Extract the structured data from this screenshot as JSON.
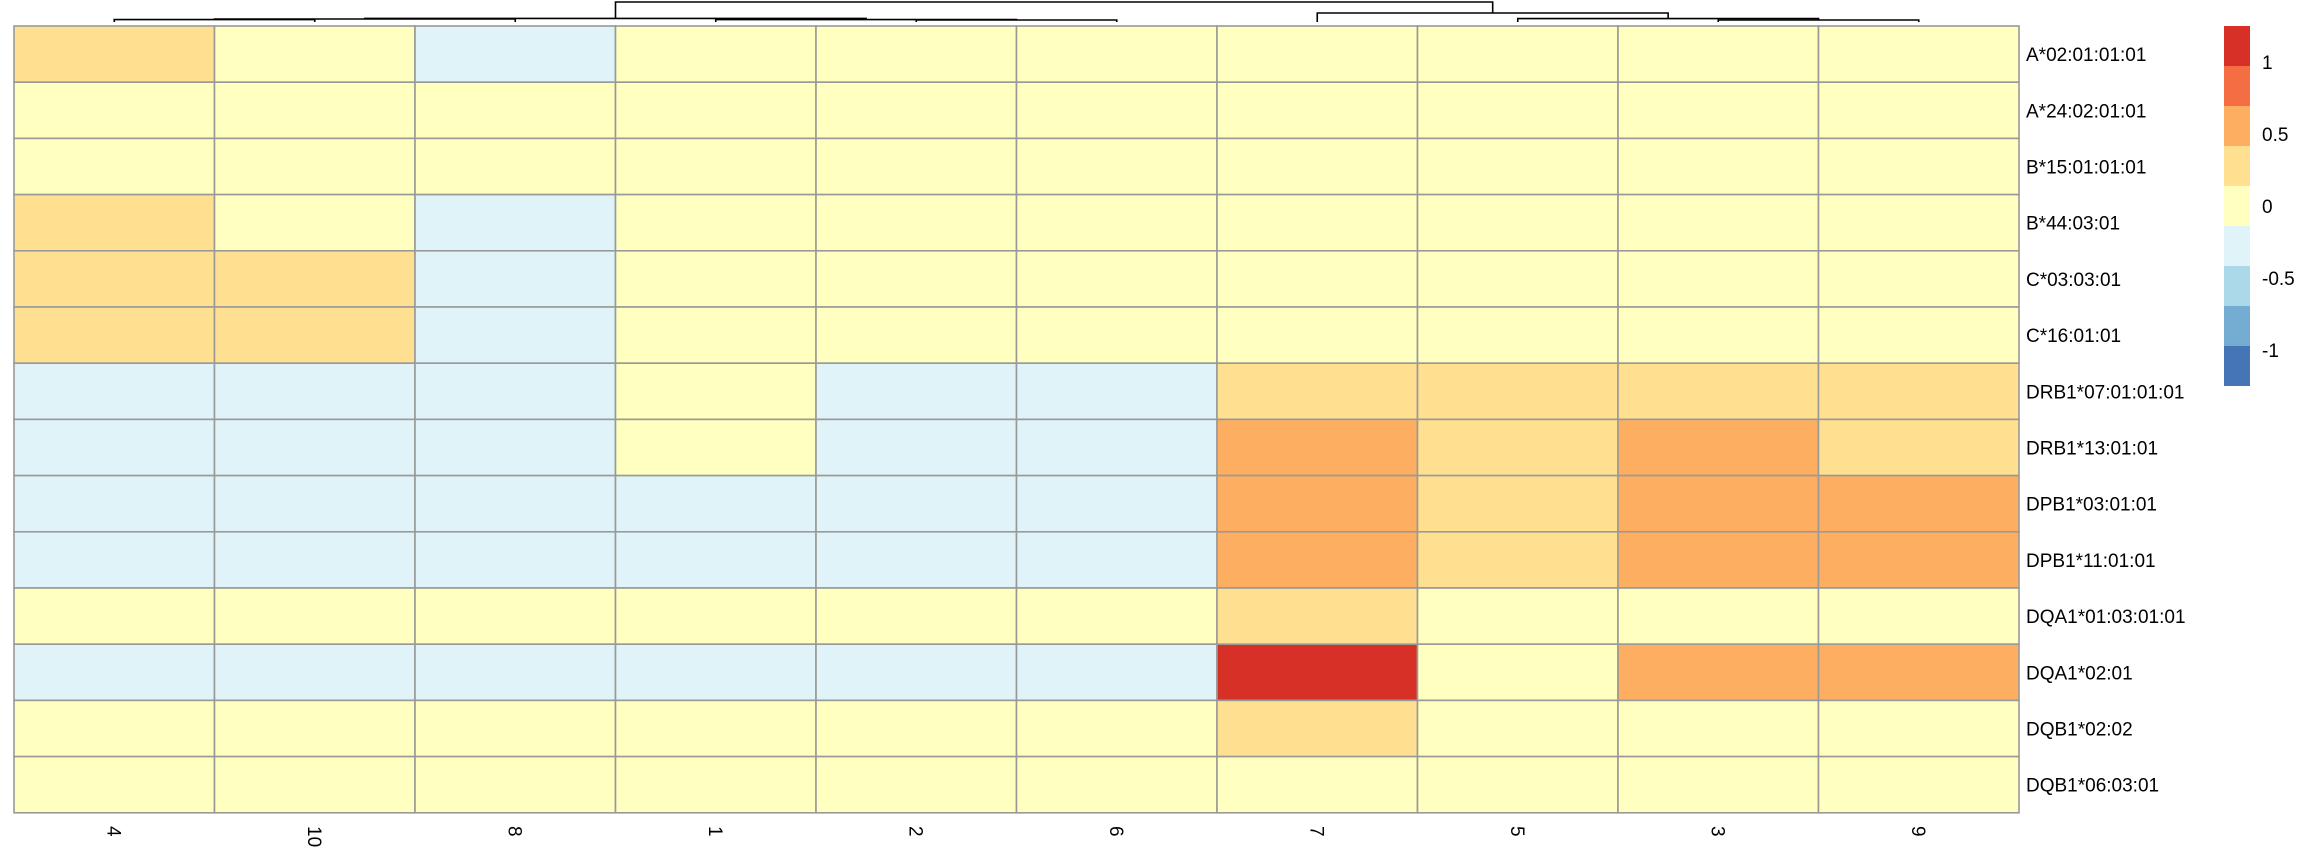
{
  "chart_data": {
    "type": "heatmap",
    "title": "",
    "xlabel": "",
    "ylabel": "",
    "columns": [
      "4",
      "10",
      "8",
      "1",
      "2",
      "6",
      "7",
      "5",
      "3",
      "9"
    ],
    "rows": [
      "A*02:01:01:01",
      "A*24:02:01:01",
      "B*15:01:01:01",
      "B*44:03:01",
      "C*03:03:01",
      "C*16:01:01",
      "DRB1*07:01:01:01",
      "DRB1*13:01:01",
      "DPB1*03:01:01",
      "DPB1*11:01:01",
      "DQA1*01:03:01:01",
      "DQA1*02:01",
      "DQB1*02:02",
      "DQB1*06:03:01"
    ],
    "values": [
      [
        0.25,
        0,
        -0.25,
        0,
        0,
        0,
        0,
        0,
        0,
        0
      ],
      [
        0,
        0,
        0,
        0,
        0,
        0,
        0,
        0,
        0,
        0
      ],
      [
        0,
        0,
        0,
        0,
        0,
        0,
        0,
        0,
        0,
        0
      ],
      [
        0.25,
        0,
        -0.25,
        0,
        0,
        0,
        0,
        0,
        0,
        0
      ],
      [
        0.25,
        0.25,
        -0.25,
        0,
        0,
        0,
        0,
        0,
        0,
        0
      ],
      [
        0.25,
        0.25,
        -0.25,
        0,
        0,
        0,
        0,
        0,
        0,
        0
      ],
      [
        -0.25,
        -0.25,
        -0.25,
        0,
        -0.25,
        -0.25,
        0.25,
        0.25,
        0.25,
        0.25
      ],
      [
        -0.25,
        -0.25,
        -0.25,
        0,
        -0.25,
        -0.25,
        0.5,
        0.25,
        0.5,
        0.25
      ],
      [
        -0.25,
        -0.25,
        -0.25,
        -0.25,
        -0.25,
        -0.25,
        0.5,
        0.25,
        0.5,
        0.5
      ],
      [
        -0.25,
        -0.25,
        -0.25,
        -0.25,
        -0.25,
        -0.25,
        0.5,
        0.25,
        0.5,
        0.5
      ],
      [
        0,
        0,
        0,
        0,
        0,
        0,
        0.25,
        0,
        0,
        0
      ],
      [
        -0.25,
        -0.5,
        -0.25,
        -0.25,
        -0.5,
        -0.5,
        1.25,
        0,
        0.5,
        0.5
      ],
      [
        0,
        0,
        0,
        0,
        0,
        0,
        0.25,
        0,
        0,
        0
      ],
      [
        0,
        0,
        0,
        0,
        0,
        0,
        0,
        0,
        0,
        0
      ]
    ],
    "color_scale": {
      "range": [
        -1.25,
        1.25
      ],
      "bins": [
        {
          "min": -1.25,
          "max": -1.0,
          "color": "#4575B4"
        },
        {
          "min": -1.0,
          "max": -0.75,
          "color": "#74ADD1"
        },
        {
          "min": -0.75,
          "max": -0.5,
          "color": "#ABD9E9"
        },
        {
          "min": -0.5,
          "max": -0.125,
          "color": "#E0F3F8"
        },
        {
          "min": -0.125,
          "max": 0.125,
          "color": "#FFFFBF"
        },
        {
          "min": 0.125,
          "max": 0.375,
          "color": "#FEE090"
        },
        {
          "min": 0.375,
          "max": 0.75,
          "color": "#FDAE61"
        },
        {
          "min": 0.75,
          "max": 1.0,
          "color": "#F46D43"
        },
        {
          "min": 1.0,
          "max": 1.25,
          "color": "#D73027"
        }
      ],
      "legend_ticks": [
        1,
        0.5,
        0,
        -0.5,
        -1
      ],
      "legend_tick_labels": [
        "1",
        "0.5",
        "0",
        "-0.5",
        "-1"
      ]
    },
    "column_dendrogram": {
      "merges": [
        [
          -1,
          -2,
          0.12
        ],
        [
          -3,
          1,
          0.15
        ],
        [
          -5,
          -6,
          0.1
        ],
        [
          -4,
          3,
          0.12
        ],
        [
          2,
          4,
          0.18
        ],
        [
          -9,
          -10,
          0.1
        ],
        [
          -8,
          6,
          0.17
        ],
        [
          -7,
          7,
          0.45
        ],
        [
          5,
          8,
          1.0
        ]
      ]
    },
    "grid": true,
    "legend_position": "right"
  }
}
